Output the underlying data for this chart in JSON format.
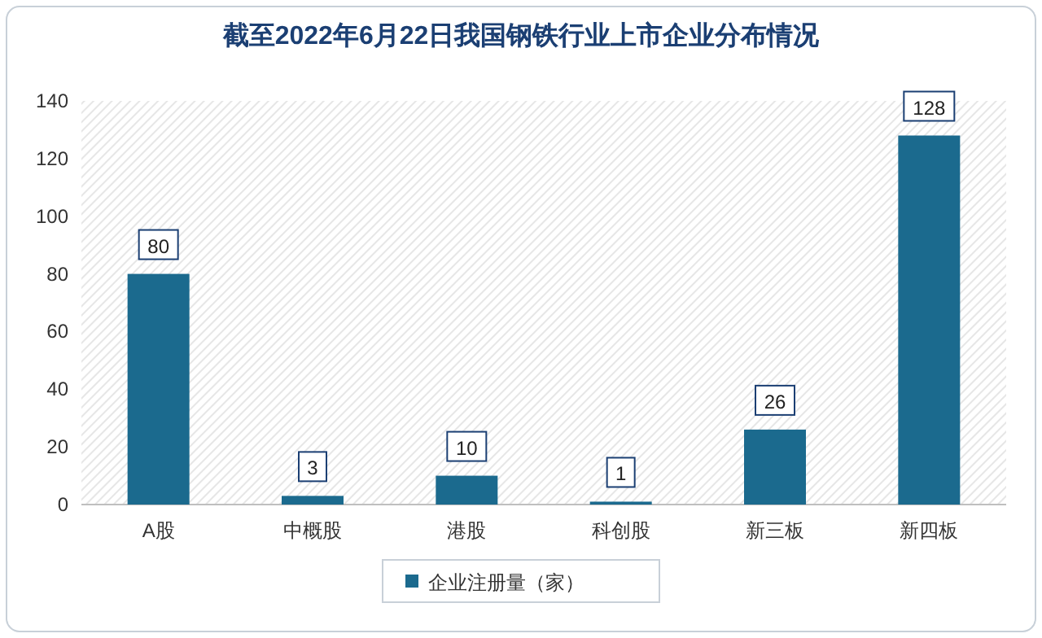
{
  "chart_data": {
    "type": "bar",
    "title": "截至2022年6月22日我国钢铁行业上市企业分布情况",
    "categories": [
      "A股",
      "中概股",
      "港股",
      "科创股",
      "新三板",
      "新四板"
    ],
    "series": [
      {
        "name": "企业注册量（家）",
        "color": "#1b6a8e",
        "values": [
          80,
          3,
          10,
          1,
          26,
          128
        ]
      }
    ],
    "ylim": [
      0,
      140
    ],
    "yticks": [
      0,
      20,
      40,
      60,
      80,
      100,
      120,
      140
    ],
    "data_labels": true,
    "legend": "bottom",
    "grid": false
  }
}
